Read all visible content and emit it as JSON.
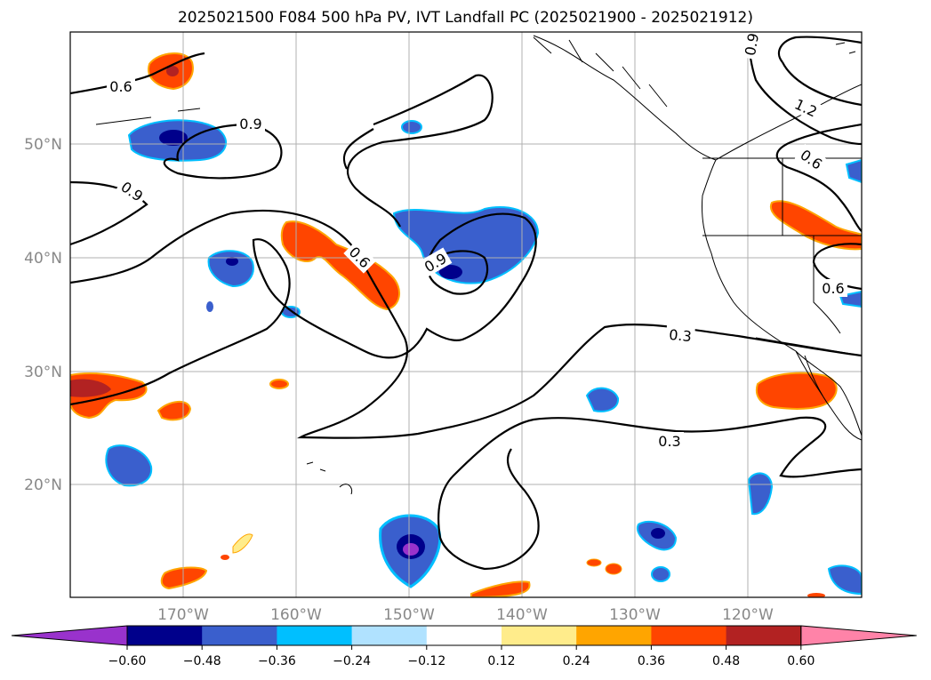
{
  "title": "2025021500 F084 500 hPa PV, IVT Landfall PC (2025021900 - 2025021912)",
  "map": {
    "lon_ticks": [
      "170°W",
      "160°W",
      "150°W",
      "140°W",
      "130°W",
      "120°W"
    ],
    "lat_ticks": [
      "50°N",
      "40°N",
      "30°N",
      "20°N"
    ],
    "contour_labels": [
      "0.6",
      "0.9",
      "0.9",
      "0.6",
      "0.9",
      "0.3",
      "0.3",
      "1.2",
      "0.6",
      "0.6",
      "0.9"
    ],
    "line_color": "#000000",
    "grid_color": "#b0b0b0",
    "background": "#ffffff"
  },
  "colorbar": {
    "tick_labels": [
      "−0.60",
      "−0.48",
      "−0.36",
      "−0.24",
      "−0.12",
      "0.12",
      "0.24",
      "0.36",
      "0.48",
      "0.60"
    ],
    "colors": [
      "#9932cc",
      "#00008b",
      "#3a5fcd",
      "#00bfff",
      "#b0e2ff",
      "#ffffff",
      "#ffec8b",
      "#ffa500",
      "#ff4500",
      "#b22222",
      "#ff83a8"
    ]
  }
}
